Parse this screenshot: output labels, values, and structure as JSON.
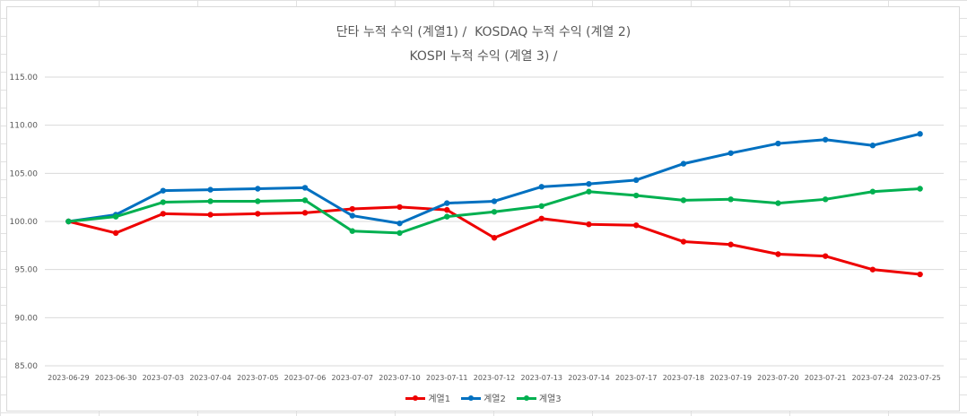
{
  "chart_data": {
    "type": "line",
    "title_lines": [
      "단타 누적 수익 (계열1) /  KOSDAQ 누적 수익 (계열 2)",
      "KOSPI 누적 수익 (계열 3) /"
    ],
    "categories": [
      "2023-06-29",
      "2023-06-30",
      "2023-07-03",
      "2023-07-04",
      "2023-07-05",
      "2023-07-06",
      "2023-07-07",
      "2023-07-10",
      "2023-07-11",
      "2023-07-12",
      "2023-07-13",
      "2023-07-14",
      "2023-07-17",
      "2023-07-18",
      "2023-07-19",
      "2023-07-20",
      "2023-07-21",
      "2023-07-24",
      "2023-07-25"
    ],
    "ylim": [
      85,
      115
    ],
    "ytick_labels": [
      "115.00",
      "110.00",
      "105.00",
      "100.00",
      "95.00",
      "90.00",
      "85.00"
    ],
    "grid": true,
    "legend_position": "bottom",
    "series": [
      {
        "name": "계열1",
        "color": "#ee0000",
        "values": [
          100.0,
          98.8,
          100.8,
          100.7,
          100.8,
          100.9,
          101.3,
          101.5,
          101.2,
          98.3,
          100.3,
          99.7,
          99.6,
          97.9,
          97.6,
          96.6,
          96.4,
          95.0,
          94.5
        ]
      },
      {
        "name": "계열2",
        "color": "#0070c0",
        "values": [
          100.0,
          100.7,
          103.2,
          103.3,
          103.4,
          103.5,
          100.6,
          99.8,
          101.9,
          102.1,
          103.6,
          103.9,
          104.3,
          106.0,
          107.1,
          108.1,
          108.5,
          107.9,
          109.1
        ]
      },
      {
        "name": "계열3",
        "color": "#00b050",
        "values": [
          100.0,
          100.5,
          102.0,
          102.1,
          102.1,
          102.2,
          99.0,
          98.8,
          100.5,
          101.0,
          101.6,
          103.1,
          102.7,
          102.2,
          102.3,
          101.9,
          102.3,
          103.1,
          103.4
        ]
      }
    ]
  }
}
